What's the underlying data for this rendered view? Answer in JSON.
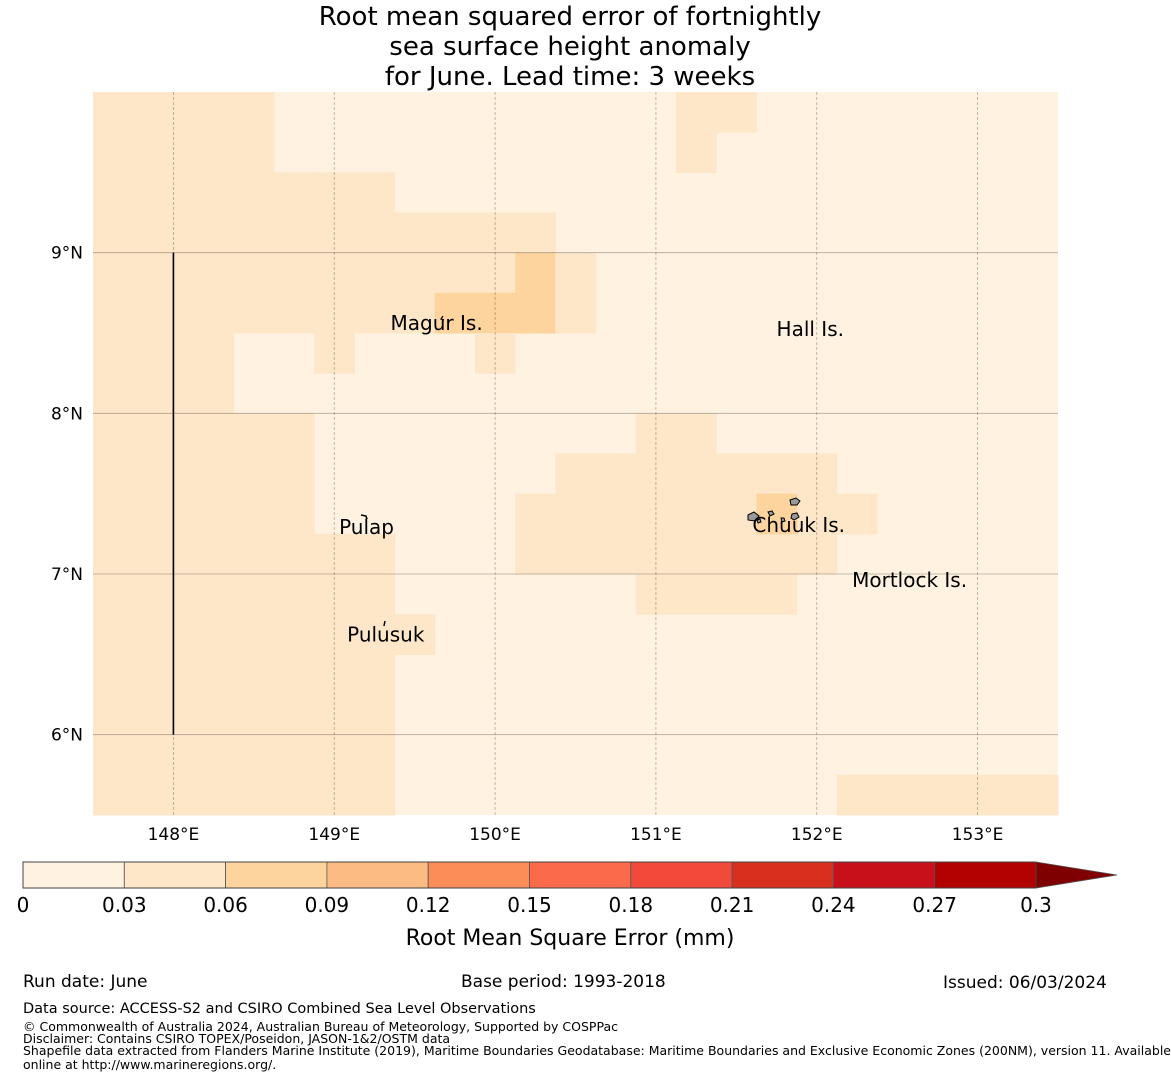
{
  "title": {
    "line1": "Root mean squared error of fortnightly",
    "line2": "sea surface height anomaly",
    "line3": "for June. Lead time: 3 weeks"
  },
  "map": {
    "lon_range": [
      147.5,
      153.5
    ],
    "lat_range": [
      5.5,
      10.0
    ],
    "lon_ticks": [
      {
        "value": 148,
        "label": "148°E"
      },
      {
        "value": 149,
        "label": "149°E"
      },
      {
        "value": 150,
        "label": "150°E"
      },
      {
        "value": 151,
        "label": "151°E"
      },
      {
        "value": 152,
        "label": "152°E"
      },
      {
        "value": 153,
        "label": "153°E"
      }
    ],
    "lat_ticks": [
      {
        "value": 9,
        "label": "9°N"
      },
      {
        "value": 8,
        "label": "8°N"
      },
      {
        "value": 7,
        "label": "7°N"
      },
      {
        "value": 6,
        "label": "6°N"
      }
    ],
    "place_labels": [
      {
        "name": "Magur Is.",
        "lon": 149.35,
        "lat": 8.52
      },
      {
        "name": "Hall Is.",
        "lon": 151.75,
        "lat": 8.48
      },
      {
        "name": "Pulap",
        "lon": 149.03,
        "lat": 7.25
      },
      {
        "name": "Chuuk Is.",
        "lon": 151.6,
        "lat": 7.26
      },
      {
        "name": "Mortlock Is.",
        "lon": 152.22,
        "lat": 6.92
      },
      {
        "name": "Pulusuk",
        "lon": 149.08,
        "lat": 6.58
      }
    ],
    "colors": {
      "c1": "#fff2e0",
      "c2": "#fee6c8",
      "c3": "#fdd49e"
    },
    "field_cells": [
      {
        "lon": [
          147.5,
          148.625
        ],
        "lat": [
          9.5,
          10.0
        ],
        "c": "c2"
      },
      {
        "lon": [
          147.5,
          148.875
        ],
        "lat": [
          9.0,
          9.5
        ],
        "c": "c2"
      },
      {
        "lon": [
          148.875,
          149.375
        ],
        "lat": [
          9.25,
          9.5
        ],
        "c": "c2"
      },
      {
        "lon": [
          148.875,
          150.375
        ],
        "lat": [
          9.0,
          9.25
        ],
        "c": "c2"
      },
      {
        "lon": [
          147.5,
          150.125
        ],
        "lat": [
          8.5,
          9.0
        ],
        "c": "c2"
      },
      {
        "lon": [
          150.125,
          150.375
        ],
        "lat": [
          8.5,
          9.0
        ],
        "c": "c3"
      },
      {
        "lon": [
          149.625,
          150.125
        ],
        "lat": [
          8.5,
          8.75
        ],
        "c": "c3"
      },
      {
        "lon": [
          150.375,
          150.625
        ],
        "lat": [
          8.5,
          9.0
        ],
        "c": "c2"
      },
      {
        "lon": [
          147.5,
          148.375
        ],
        "lat": [
          8.0,
          8.5
        ],
        "c": "c2"
      },
      {
        "lon": [
          148.875,
          149.125
        ],
        "lat": [
          8.25,
          8.5
        ],
        "c": "c2"
      },
      {
        "lon": [
          149.875,
          150.125
        ],
        "lat": [
          8.25,
          8.5
        ],
        "c": "c2"
      },
      {
        "lon": [
          151.375,
          151.625
        ],
        "lat": [
          9.75,
          10.0
        ],
        "c": "c2"
      },
      {
        "lon": [
          151.125,
          151.375
        ],
        "lat": [
          9.5,
          10.0
        ],
        "c": "c2"
      },
      {
        "lon": [
          147.5,
          148.875
        ],
        "lat": [
          7.25,
          8.0
        ],
        "c": "c2"
      },
      {
        "lon": [
          147.5,
          149.375
        ],
        "lat": [
          5.5,
          7.25
        ],
        "c": "c2"
      },
      {
        "lon": [
          149.375,
          149.625
        ],
        "lat": [
          6.5,
          6.75
        ],
        "c": "c2"
      },
      {
        "lon": [
          150.875,
          151.375
        ],
        "lat": [
          7.75,
          8.0
        ],
        "c": "c2"
      },
      {
        "lon": [
          150.375,
          152.125
        ],
        "lat": [
          7.5,
          7.75
        ],
        "c": "c2"
      },
      {
        "lon": [
          150.125,
          152.125
        ],
        "lat": [
          7.0,
          7.5
        ],
        "c": "c2"
      },
      {
        "lon": [
          152.125,
          152.375
        ],
        "lat": [
          7.25,
          7.5
        ],
        "c": "c2"
      },
      {
        "lon": [
          151.625,
          151.875
        ],
        "lat": [
          7.25,
          7.5
        ],
        "c": "c3"
      },
      {
        "lon": [
          150.875,
          151.875
        ],
        "lat": [
          6.75,
          7.0
        ],
        "c": "c2"
      },
      {
        "lon": [
          152.125,
          153.5
        ],
        "lat": [
          5.5,
          5.75
        ],
        "c": "c2"
      }
    ],
    "outer_boundary_line": {
      "lon": 148.0,
      "lat": [
        6.0,
        9.0
      ]
    }
  },
  "colorbar": {
    "label": "Root Mean Square Error (mm)",
    "ticks": [
      "0",
      "0.03",
      "0.06",
      "0.09",
      "0.12",
      "0.15",
      "0.18",
      "0.21",
      "0.24",
      "0.27",
      "0.3"
    ],
    "colors": [
      "#fff2e0",
      "#fee6c8",
      "#fdd49e",
      "#fdbb84",
      "#fc8d59",
      "#fc6a4c",
      "#f24a3a",
      "#d7301f",
      "#c8101a",
      "#b30000"
    ],
    "extend_color": "#7f0000"
  },
  "footer": {
    "run_date": "Run date: June",
    "base_period": "Base period: 1993-2018",
    "issued": "Issued: 06/03/2024",
    "data_source": "Data source: ACCESS-S2 and CSIRO Combined Sea Level Observations",
    "copyright": "© Commonwealth of Australia 2024, Australian Bureau of Meteorology, Supported by COSPPac",
    "disclaimer": "Disclaimer: Contains CSIRO TOPEX/Poseidon, JASON-1&2/OSTM data",
    "shapefile_line1": "Shapefile data extracted from Flanders Marine Institute (2019), Maritime Boundaries Geodatabase: Maritime Boundaries and Exclusive Economic Zones (200NM), version 11. Available",
    "shapefile_line2": "online at http://www.marineregions.org/."
  }
}
